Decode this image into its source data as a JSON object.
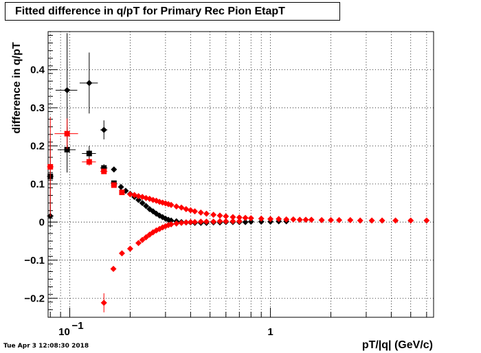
{
  "chart_data": {
    "type": "scatter",
    "title": "Fitted difference in q/pT for Primary Rec Pion EtapT",
    "xlabel": "pT/|q| (GeV/c)",
    "ylabel": "difference in q/pT",
    "x_scale": "log",
    "xlim": [
      0.078,
      6.5
    ],
    "ylim": [
      -0.25,
      0.5
    ],
    "grid": true,
    "x_tick_labels": [
      {
        "value": 0.1,
        "label": "10",
        "exp": "−1"
      },
      {
        "value": 1,
        "label": "1",
        "exp": ""
      }
    ],
    "y_ticks": [
      -0.2,
      -0.1,
      0,
      0.1,
      0.2,
      0.3,
      0.4
    ],
    "y_tick_labels": [
      "−0.2",
      "−0.1",
      "0",
      "0.1",
      "0.2",
      "0.3",
      "0.4"
    ],
    "series": [
      {
        "color": "#000000",
        "marker": "square",
        "points": [
          {
            "x": 0.08,
            "y": 0.12,
            "xerr": 0.003,
            "yerr": 0.1
          },
          {
            "x": 0.097,
            "y": 0.19,
            "xerr": 0.01,
            "yerr": 0.06
          },
          {
            "x": 0.125,
            "y": 0.18,
            "xerr": 0.01,
            "yerr": 0.02
          },
          {
            "x": 0.148,
            "y": 0.142,
            "xerr": 0.006,
            "yerr": 0.01
          },
          {
            "x": 0.166,
            "y": 0.102,
            "xerr": 0.006,
            "yerr": 0.005
          }
        ]
      },
      {
        "color": "#000000",
        "marker": "diamond",
        "points": [
          {
            "x": 0.08,
            "y": 0.016,
            "xerr": 0.003,
            "yerr": 0.03
          },
          {
            "x": 0.097,
            "y": 0.346,
            "xerr": 0.012,
            "yerr": 0.15
          },
          {
            "x": 0.125,
            "y": 0.365,
            "xerr": 0.013,
            "yerr": 0.08
          },
          {
            "x": 0.148,
            "y": 0.242,
            "xerr": 0.006,
            "yerr": 0.025
          },
          {
            "x": 0.166,
            "y": 0.138,
            "xerr": 0.004,
            "yerr": 0.005
          },
          {
            "x": 0.18,
            "y": 0.092
          },
          {
            "x": 0.19,
            "y": 0.082
          },
          {
            "x": 0.2,
            "y": 0.074
          },
          {
            "x": 0.21,
            "y": 0.066
          },
          {
            "x": 0.22,
            "y": 0.058
          },
          {
            "x": 0.23,
            "y": 0.05
          },
          {
            "x": 0.24,
            "y": 0.042
          },
          {
            "x": 0.25,
            "y": 0.034
          },
          {
            "x": 0.26,
            "y": 0.028
          },
          {
            "x": 0.27,
            "y": 0.022
          },
          {
            "x": 0.28,
            "y": 0.017
          },
          {
            "x": 0.29,
            "y": 0.013
          },
          {
            "x": 0.3,
            "y": 0.009
          },
          {
            "x": 0.31,
            "y": 0.006
          },
          {
            "x": 0.32,
            "y": 0.004
          },
          {
            "x": 0.34,
            "y": 0.002
          },
          {
            "x": 0.36,
            "y": 0.0
          },
          {
            "x": 0.38,
            "y": -0.001
          },
          {
            "x": 0.4,
            "y": -0.001
          },
          {
            "x": 0.42,
            "y": -0.002
          },
          {
            "x": 0.45,
            "y": -0.002
          },
          {
            "x": 0.48,
            "y": -0.002
          },
          {
            "x": 0.52,
            "y": -0.001
          },
          {
            "x": 0.56,
            "y": -0.001
          },
          {
            "x": 0.6,
            "y": 0.0
          },
          {
            "x": 0.65,
            "y": 0.0
          },
          {
            "x": 0.7,
            "y": 0.0
          },
          {
            "x": 0.75,
            "y": 0.0
          },
          {
            "x": 0.8,
            "y": 0.001
          },
          {
            "x": 0.9,
            "y": 0.001
          },
          {
            "x": 1.0,
            "y": 0.001
          },
          {
            "x": 1.1,
            "y": 0.002
          },
          {
            "x": 1.2,
            "y": 0.002
          }
        ]
      },
      {
        "color": "#ff0000",
        "marker": "square",
        "points": [
          {
            "x": 0.08,
            "y": 0.145,
            "xerr": 0.003,
            "yerr": 0.13
          },
          {
            "x": 0.097,
            "y": 0.232,
            "xerr": 0.013,
            "yerr": 0.04
          },
          {
            "x": 0.125,
            "y": 0.158,
            "xerr": 0.01,
            "yerr": 0.01
          },
          {
            "x": 0.148,
            "y": 0.133,
            "xerr": 0.006,
            "yerr": 0.006
          },
          {
            "x": 0.166,
            "y": 0.097,
            "xerr": 0.005,
            "yerr": 0.005
          },
          {
            "x": 0.182,
            "y": 0.078,
            "xerr": 0.005,
            "yerr": 0.004
          }
        ]
      },
      {
        "color": "#ff0000",
        "marker": "diamond",
        "points": [
          {
            "x": 0.2,
            "y": 0.073
          },
          {
            "x": 0.21,
            "y": 0.071
          },
          {
            "x": 0.22,
            "y": 0.068
          },
          {
            "x": 0.23,
            "y": 0.066
          },
          {
            "x": 0.24,
            "y": 0.063
          },
          {
            "x": 0.25,
            "y": 0.061
          },
          {
            "x": 0.26,
            "y": 0.058
          },
          {
            "x": 0.27,
            "y": 0.056
          },
          {
            "x": 0.28,
            "y": 0.053
          },
          {
            "x": 0.29,
            "y": 0.051
          },
          {
            "x": 0.3,
            "y": 0.049
          },
          {
            "x": 0.31,
            "y": 0.047
          },
          {
            "x": 0.32,
            "y": 0.045
          },
          {
            "x": 0.34,
            "y": 0.041
          },
          {
            "x": 0.36,
            "y": 0.038
          },
          {
            "x": 0.38,
            "y": 0.034
          },
          {
            "x": 0.4,
            "y": 0.031
          },
          {
            "x": 0.42,
            "y": 0.028
          },
          {
            "x": 0.45,
            "y": 0.025
          },
          {
            "x": 0.48,
            "y": 0.022
          },
          {
            "x": 0.52,
            "y": 0.019
          },
          {
            "x": 0.56,
            "y": 0.017
          },
          {
            "x": 0.6,
            "y": 0.015
          },
          {
            "x": 0.65,
            "y": 0.013
          },
          {
            "x": 0.7,
            "y": 0.012
          },
          {
            "x": 0.75,
            "y": 0.011
          },
          {
            "x": 0.8,
            "y": 0.01
          },
          {
            "x": 0.9,
            "y": 0.009
          },
          {
            "x": 1.0,
            "y": 0.008
          },
          {
            "x": 1.1,
            "y": 0.008
          },
          {
            "x": 1.2,
            "y": 0.007
          },
          {
            "x": 1.3,
            "y": 0.007
          },
          {
            "x": 1.4,
            "y": 0.006
          },
          {
            "x": 1.5,
            "y": 0.006
          },
          {
            "x": 1.6,
            "y": 0.006
          },
          {
            "x": 1.8,
            "y": 0.005
          },
          {
            "x": 2.0,
            "y": 0.005
          },
          {
            "x": 2.2,
            "y": 0.005
          },
          {
            "x": 2.5,
            "y": 0.005
          },
          {
            "x": 2.8,
            "y": 0.004
          },
          {
            "x": 3.2,
            "y": 0.004
          },
          {
            "x": 3.6,
            "y": 0.004
          },
          {
            "x": 4.2,
            "y": 0.004
          },
          {
            "x": 5.0,
            "y": 0.004
          },
          {
            "x": 6.0,
            "y": 0.004
          },
          {
            "x": 0.148,
            "y": -0.212,
            "xerr": 0.005,
            "yerr": 0.025
          },
          {
            "x": 0.165,
            "y": -0.123,
            "xerr": 0.003,
            "yerr": 0.005
          },
          {
            "x": 0.182,
            "y": -0.082
          },
          {
            "x": 0.2,
            "y": -0.07
          },
          {
            "x": 0.22,
            "y": -0.055
          },
          {
            "x": 0.23,
            "y": -0.047
          },
          {
            "x": 0.24,
            "y": -0.04
          },
          {
            "x": 0.25,
            "y": -0.033
          },
          {
            "x": 0.26,
            "y": -0.027
          },
          {
            "x": 0.27,
            "y": -0.022
          },
          {
            "x": 0.28,
            "y": -0.018
          },
          {
            "x": 0.29,
            "y": -0.014
          },
          {
            "x": 0.3,
            "y": -0.011
          },
          {
            "x": 0.31,
            "y": -0.008
          },
          {
            "x": 0.32,
            "y": -0.006
          },
          {
            "x": 0.34,
            "y": -0.004
          },
          {
            "x": 0.36,
            "y": -0.002
          },
          {
            "x": 0.38,
            "y": -0.001
          },
          {
            "x": 0.4,
            "y": 0.0
          },
          {
            "x": 0.42,
            "y": 0.0
          },
          {
            "x": 0.45,
            "y": 0.001
          },
          {
            "x": 0.48,
            "y": 0.001
          },
          {
            "x": 0.52,
            "y": 0.001
          },
          {
            "x": 0.56,
            "y": 0.002
          },
          {
            "x": 0.6,
            "y": 0.002
          },
          {
            "x": 0.65,
            "y": 0.002
          },
          {
            "x": 0.7,
            "y": 0.002
          }
        ]
      }
    ]
  },
  "timestamp": "Tue Apr  3 12:08:30 2018"
}
